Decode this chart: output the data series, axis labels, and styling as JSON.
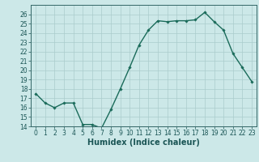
{
  "title": "",
  "xlabel": "Humidex (Indice chaleur)",
  "x": [
    0,
    1,
    2,
    3,
    4,
    5,
    6,
    7,
    8,
    9,
    10,
    11,
    12,
    13,
    14,
    15,
    16,
    17,
    18,
    19,
    20,
    21,
    22,
    23
  ],
  "y": [
    17.5,
    16.5,
    16.0,
    16.5,
    16.5,
    14.2,
    14.2,
    13.8,
    15.8,
    18.0,
    20.3,
    22.7,
    24.3,
    25.3,
    25.2,
    25.3,
    25.3,
    25.4,
    26.2,
    25.2,
    24.3,
    21.8,
    20.3,
    18.8
  ],
  "ylim": [
    14,
    27
  ],
  "xlim": [
    -0.5,
    23.5
  ],
  "yticks": [
    14,
    15,
    16,
    17,
    18,
    19,
    20,
    21,
    22,
    23,
    24,
    25,
    26
  ],
  "xticks": [
    0,
    1,
    2,
    3,
    4,
    5,
    6,
    7,
    8,
    9,
    10,
    11,
    12,
    13,
    14,
    15,
    16,
    17,
    18,
    19,
    20,
    21,
    22,
    23
  ],
  "line_color": "#1a6b5a",
  "marker": "D",
  "marker_size": 1.8,
  "bg_color": "#cce8e8",
  "grid_color": "#aacccc",
  "axis_color": "#336666",
  "tick_label_color": "#1a5555",
  "xlabel_fontsize": 7,
  "tick_fontsize": 5.5,
  "line_width": 1.0
}
